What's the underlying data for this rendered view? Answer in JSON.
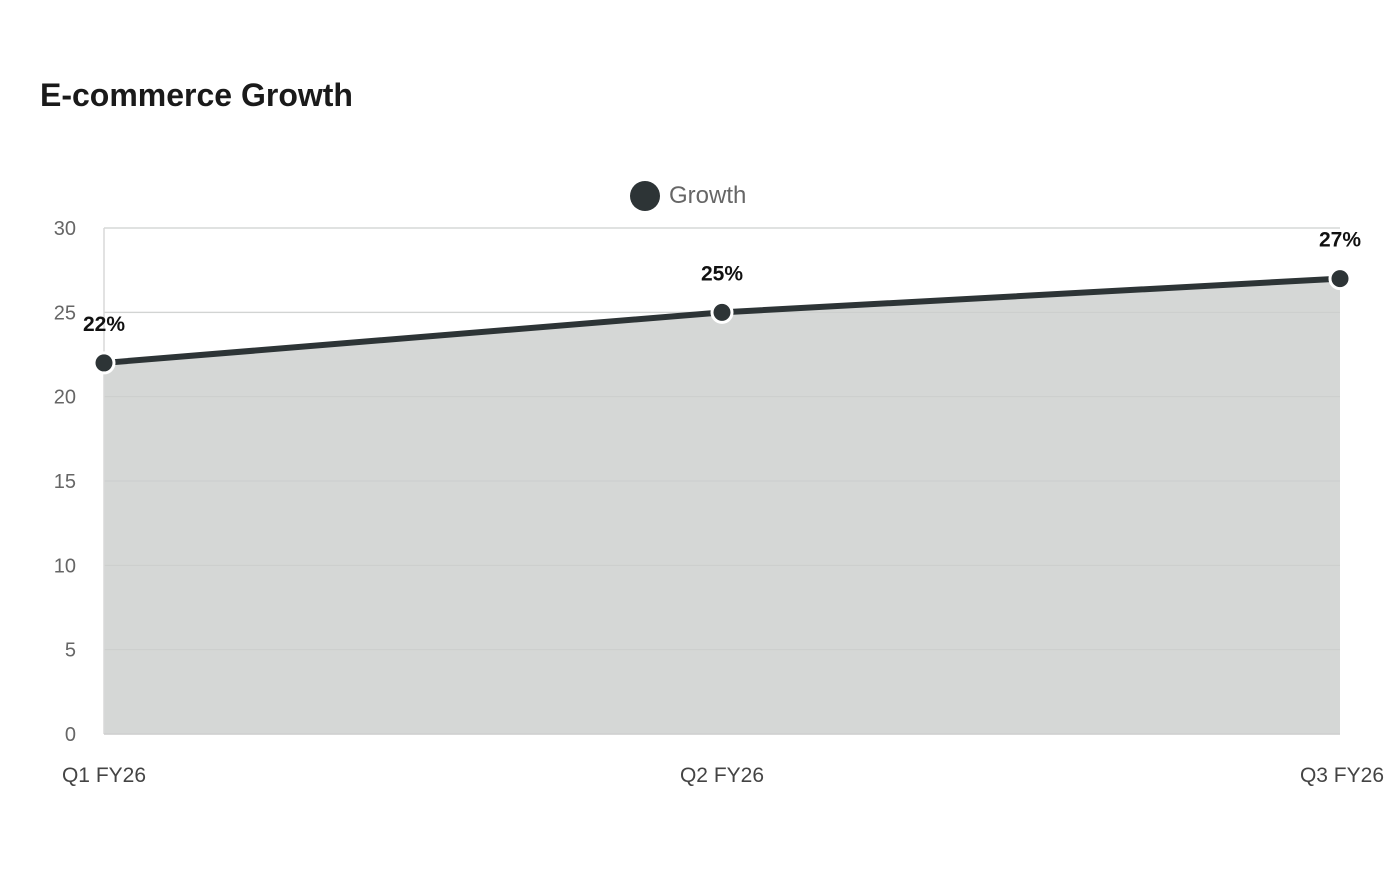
{
  "title": "E-commerce Growth",
  "colors": {
    "line": "#2d3436",
    "area": "#d5d7d6",
    "grid": "#e4e4e4",
    "point_stroke": "#ffffff"
  },
  "chart_data": {
    "type": "area",
    "title": "E-commerce Growth",
    "xlabel": "",
    "ylabel": "",
    "categories": [
      "Q1 FY26",
      "Q2 FY26",
      "Q3 FY26"
    ],
    "series": [
      {
        "name": "Growth",
        "values": [
          22,
          25,
          27
        ],
        "data_labels": [
          "22%",
          "25%",
          "27%"
        ]
      }
    ],
    "ylim": [
      0,
      30
    ],
    "yticks": [
      0,
      5,
      10,
      15,
      20,
      25,
      30
    ],
    "grid": true,
    "legend_position": "top-center"
  }
}
